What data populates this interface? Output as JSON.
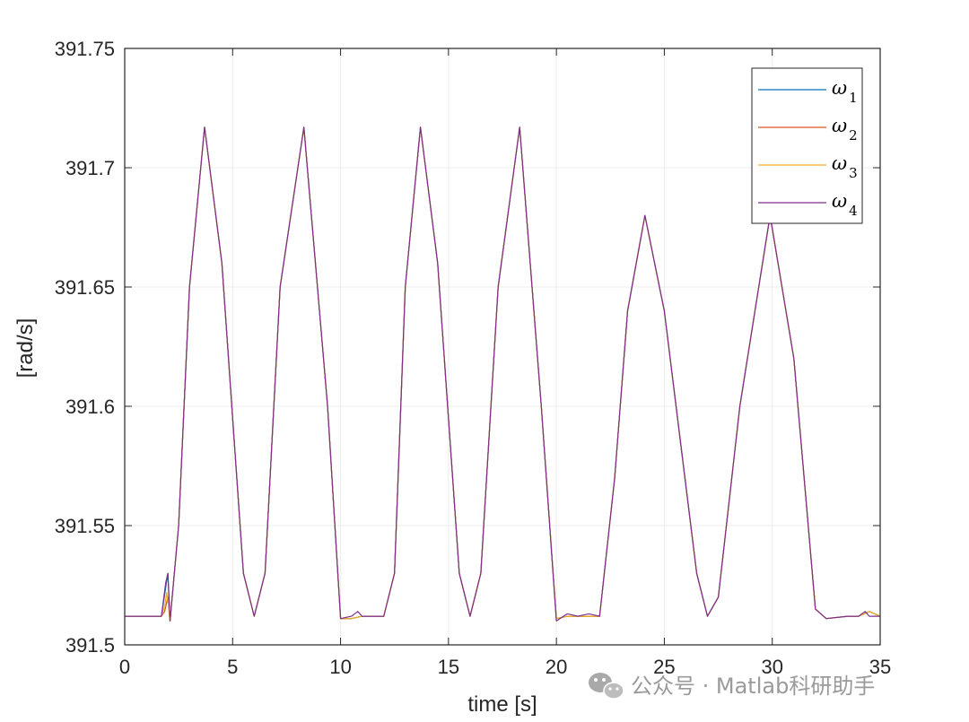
{
  "chart_data": {
    "type": "line",
    "xlabel": "time [s]",
    "ylabel": "[rad/s]",
    "xlim": [
      0,
      35
    ],
    "ylim": [
      391.5,
      391.75
    ],
    "xticks": [
      0,
      5,
      10,
      15,
      20,
      25,
      30,
      35
    ],
    "yticks": [
      391.5,
      391.55,
      391.6,
      391.65,
      391.7,
      391.75
    ],
    "xtick_labels": [
      "0",
      "5",
      "10",
      "15",
      "20",
      "25",
      "30",
      "35"
    ],
    "ytick_labels": [
      "391.5",
      "391.55",
      "391.6",
      "391.65",
      "391.7",
      "391.75"
    ],
    "grid": true,
    "legend_position": "top-right",
    "series": [
      {
        "name": "ω1",
        "symbol": "ω",
        "subscript": "1",
        "color": "#0072BD",
        "x": [
          0,
          1.7,
          2.0,
          2.1,
          2.5,
          3.0,
          3.7,
          4.5,
          5.5,
          6.0,
          6.5,
          7.2,
          8.3,
          9.4,
          10.0,
          10.5,
          11.0,
          12.0,
          12.5,
          13.0,
          13.7,
          14.5,
          15.5,
          16.0,
          16.5,
          17.3,
          18.3,
          19.3,
          20.0,
          20.5,
          21.5,
          22.0,
          22.7,
          23.3,
          24.1,
          25.0,
          26.5,
          27.0,
          27.5,
          28.5,
          29.9,
          31.0,
          32.0,
          32.5,
          33.5,
          34.0,
          34.5,
          35.0
        ],
        "y": [
          391.512,
          391.512,
          391.53,
          391.51,
          391.55,
          391.65,
          391.717,
          391.66,
          391.53,
          391.512,
          391.53,
          391.65,
          391.717,
          391.6,
          391.511,
          391.511,
          391.512,
          391.512,
          391.53,
          391.65,
          391.717,
          391.66,
          391.53,
          391.512,
          391.53,
          391.65,
          391.717,
          391.6,
          391.511,
          391.512,
          391.512,
          391.512,
          391.57,
          391.64,
          391.68,
          391.64,
          391.53,
          391.512,
          391.52,
          391.6,
          391.68,
          391.62,
          391.515,
          391.511,
          391.512,
          391.512,
          391.514,
          391.512
        ]
      },
      {
        "name": "ω2",
        "symbol": "ω",
        "subscript": "2",
        "color": "#D95319",
        "x": [
          0,
          1.7,
          1.85,
          2.0,
          2.1,
          2.5,
          3.0,
          3.7,
          4.5,
          5.5,
          6.0,
          6.5,
          7.2,
          8.3,
          9.4,
          10.0,
          10.5,
          11.0,
          12.0,
          12.5,
          13.0,
          13.7,
          14.5,
          15.5,
          16.0,
          16.5,
          17.3,
          18.3,
          19.3,
          20.0,
          20.5,
          21.5,
          22.0,
          22.7,
          23.3,
          24.1,
          25.0,
          26.5,
          27.0,
          27.5,
          28.5,
          29.9,
          31.0,
          32.0,
          32.5,
          33.5,
          34.0,
          34.5,
          35.0
        ],
        "y": [
          391.512,
          391.512,
          391.514,
          391.52,
          391.51,
          391.55,
          391.65,
          391.717,
          391.66,
          391.53,
          391.512,
          391.53,
          391.65,
          391.717,
          391.6,
          391.511,
          391.511,
          391.512,
          391.512,
          391.53,
          391.65,
          391.717,
          391.66,
          391.53,
          391.512,
          391.53,
          391.65,
          391.717,
          391.6,
          391.511,
          391.512,
          391.512,
          391.512,
          391.57,
          391.64,
          391.68,
          391.64,
          391.53,
          391.512,
          391.52,
          391.6,
          391.68,
          391.62,
          391.515,
          391.511,
          391.512,
          391.512,
          391.514,
          391.512
        ]
      },
      {
        "name": "ω3",
        "symbol": "ω",
        "subscript": "3",
        "color": "#EDB120",
        "x": [
          0,
          1.7,
          1.85,
          1.95,
          2.1,
          2.5,
          3.0,
          3.7,
          4.5,
          5.5,
          6.0,
          6.5,
          7.2,
          8.3,
          9.4,
          10.0,
          10.5,
          11.0,
          12.0,
          12.5,
          13.0,
          13.7,
          14.5,
          15.5,
          16.0,
          16.5,
          17.3,
          18.3,
          19.3,
          20.0,
          20.5,
          21.5,
          22.0,
          22.7,
          23.3,
          24.1,
          25.0,
          26.5,
          27.0,
          27.5,
          28.5,
          29.9,
          31.0,
          32.0,
          32.5,
          33.5,
          34.0,
          34.5,
          35.0
        ],
        "y": [
          391.512,
          391.512,
          391.516,
          391.522,
          391.51,
          391.55,
          391.65,
          391.717,
          391.66,
          391.53,
          391.512,
          391.53,
          391.65,
          391.717,
          391.6,
          391.511,
          391.511,
          391.512,
          391.512,
          391.53,
          391.65,
          391.717,
          391.66,
          391.53,
          391.512,
          391.53,
          391.65,
          391.717,
          391.6,
          391.511,
          391.512,
          391.512,
          391.512,
          391.57,
          391.64,
          391.68,
          391.64,
          391.53,
          391.512,
          391.52,
          391.6,
          391.68,
          391.62,
          391.515,
          391.511,
          391.512,
          391.512,
          391.514,
          391.512
        ]
      },
      {
        "name": "ω4",
        "symbol": "ω",
        "subscript": "4",
        "color": "#7E2F8E",
        "x": [
          0,
          1.7,
          1.9,
          2.0,
          2.1,
          2.5,
          3.0,
          3.7,
          4.5,
          5.5,
          6.0,
          6.5,
          7.2,
          8.3,
          9.4,
          10.0,
          10.5,
          10.8,
          11.0,
          12.0,
          12.5,
          13.0,
          13.7,
          14.5,
          15.5,
          16.0,
          16.5,
          17.3,
          18.3,
          19.3,
          20.0,
          20.5,
          21.0,
          21.5,
          22.0,
          22.7,
          23.3,
          24.1,
          25.0,
          26.5,
          27.0,
          27.5,
          28.5,
          29.9,
          31.0,
          32.0,
          32.5,
          33.5,
          34.0,
          34.3,
          34.5,
          35.0
        ],
        "y": [
          391.512,
          391.512,
          391.526,
          391.53,
          391.51,
          391.55,
          391.65,
          391.717,
          391.66,
          391.53,
          391.512,
          391.53,
          391.65,
          391.717,
          391.6,
          391.511,
          391.512,
          391.514,
          391.512,
          391.512,
          391.53,
          391.65,
          391.717,
          391.66,
          391.53,
          391.512,
          391.53,
          391.65,
          391.717,
          391.6,
          391.51,
          391.513,
          391.512,
          391.513,
          391.512,
          391.57,
          391.64,
          391.68,
          391.64,
          391.53,
          391.512,
          391.52,
          391.6,
          391.68,
          391.62,
          391.515,
          391.511,
          391.512,
          391.512,
          391.514,
          391.512,
          391.512
        ]
      }
    ]
  },
  "watermark": {
    "text": "公众号 · Matlab科研助手",
    "icon": "wechat-icon"
  }
}
